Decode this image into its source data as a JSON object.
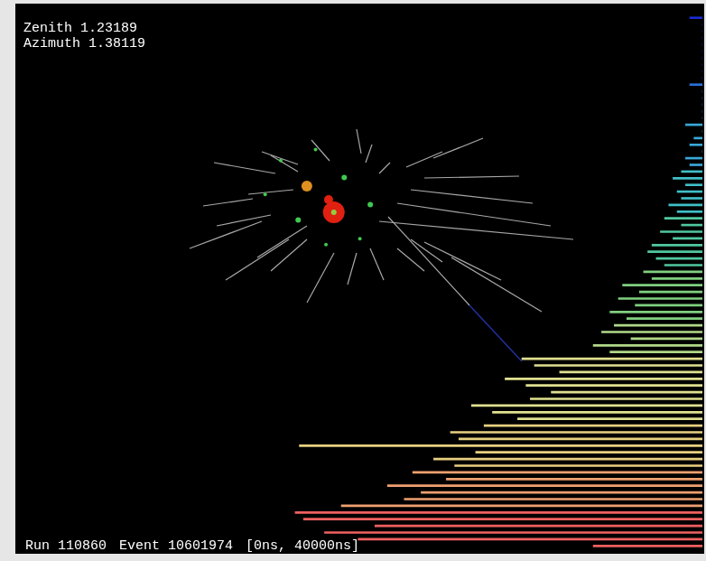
{
  "header": {
    "zenith": "Zenith 1.23189",
    "azimuth": "Azimuth 1.38119",
    "run": "Run 110860",
    "event": "Event 10601974",
    "time_window": "[0ns, 40000ns]"
  },
  "chart_data": [
    {
      "type": "scatter",
      "tick_labels": false,
      "grid": false,
      "xlim": [
        0,
        640
      ],
      "ylim": [
        0,
        400
      ],
      "x": [
        366,
        396,
        313,
        384,
        275,
        333,
        293,
        345,
        323,
        348,
        354,
        354
      ],
      "values": [
        209,
        177,
        159,
        137,
        189,
        242,
        229,
        130,
        199,
        183,
        168,
        168
      ],
      "charge": [
        3,
        3,
        3,
        2,
        2,
        2,
        2,
        2,
        6,
        5,
        12,
        3
      ],
      "colors": [
        "#40c850",
        "#40c850",
        "#40c850",
        "#40c850",
        "#40c850",
        "#40c850",
        "#40c850",
        "#40c850",
        "#e09020",
        "#e02010",
        "#e02010",
        "#90d040"
      ]
    },
    {
      "type": "bar",
      "orientation": "horizontal",
      "tick_labels": false,
      "grid": false,
      "xlim": [
        0,
        100
      ],
      "values": [
        3,
        0,
        0,
        0,
        0,
        0,
        0,
        0,
        0,
        0,
        3,
        0,
        0,
        0,
        0,
        0,
        4,
        0,
        2,
        3,
        0,
        4,
        3,
        5,
        7,
        4,
        6,
        5,
        8,
        6,
        9,
        5,
        10,
        7,
        12,
        13,
        11,
        9,
        14,
        12,
        19,
        15,
        20,
        16,
        22,
        18,
        21,
        24,
        17,
        26,
        22,
        43,
        40,
        34,
        47,
        42,
        36,
        41,
        55,
        50,
        44,
        52,
        60,
        58,
        96,
        54,
        64,
        59,
        69,
        61,
        75,
        67,
        71,
        86,
        97,
        95,
        78,
        90,
        82,
        26
      ],
      "colors": [
        "#1a2ad0",
        "#1a2ad0",
        "#1a2ad0",
        "#1a2ad0",
        "#1a2ad0",
        "#1a2ad0",
        "#1a2ad0",
        "#1a2ad0",
        "#1a2ad0",
        "#1a2ad0",
        "#2a70d8",
        "#2a70d8",
        "#2a70d8",
        "#2a70d8",
        "#2a70d8",
        "#2a70d8",
        "#3aa8d8",
        "#3aa8d8",
        "#3aa8d8",
        "#3aa8d8",
        "#3aa8d8",
        "#3aa8d8",
        "#3aa8d8",
        "#40c0c8",
        "#40c0c8",
        "#40c0c8",
        "#40c0c8",
        "#40c0c8",
        "#40c0c8",
        "#40c0c8",
        "#50c8a0",
        "#50c8a0",
        "#50c8a0",
        "#50c8a0",
        "#50c8a0",
        "#50c8a0",
        "#50c8a0",
        "#50c8a0",
        "#80d080",
        "#80d080",
        "#80d080",
        "#80d080",
        "#80d080",
        "#80d080",
        "#80d080",
        "#80d080",
        "#b0d888",
        "#b0d888",
        "#b0d888",
        "#b0d888",
        "#b0d888",
        "#e0e090",
        "#e0e090",
        "#e0e090",
        "#e0e090",
        "#e0e090",
        "#e0e090",
        "#e0e090",
        "#e0e090",
        "#e0e090",
        "#e0e090",
        "#e8d080",
        "#e8d080",
        "#e8d080",
        "#e8d080",
        "#e8d080",
        "#e8d080",
        "#e8d080",
        "#f0a070",
        "#f0a070",
        "#f0a070",
        "#f0a070",
        "#f0a070",
        "#f0a070",
        "#f06060",
        "#f06060",
        "#f06060",
        "#f06060",
        "#f06060",
        "#f06060"
      ]
    }
  ]
}
